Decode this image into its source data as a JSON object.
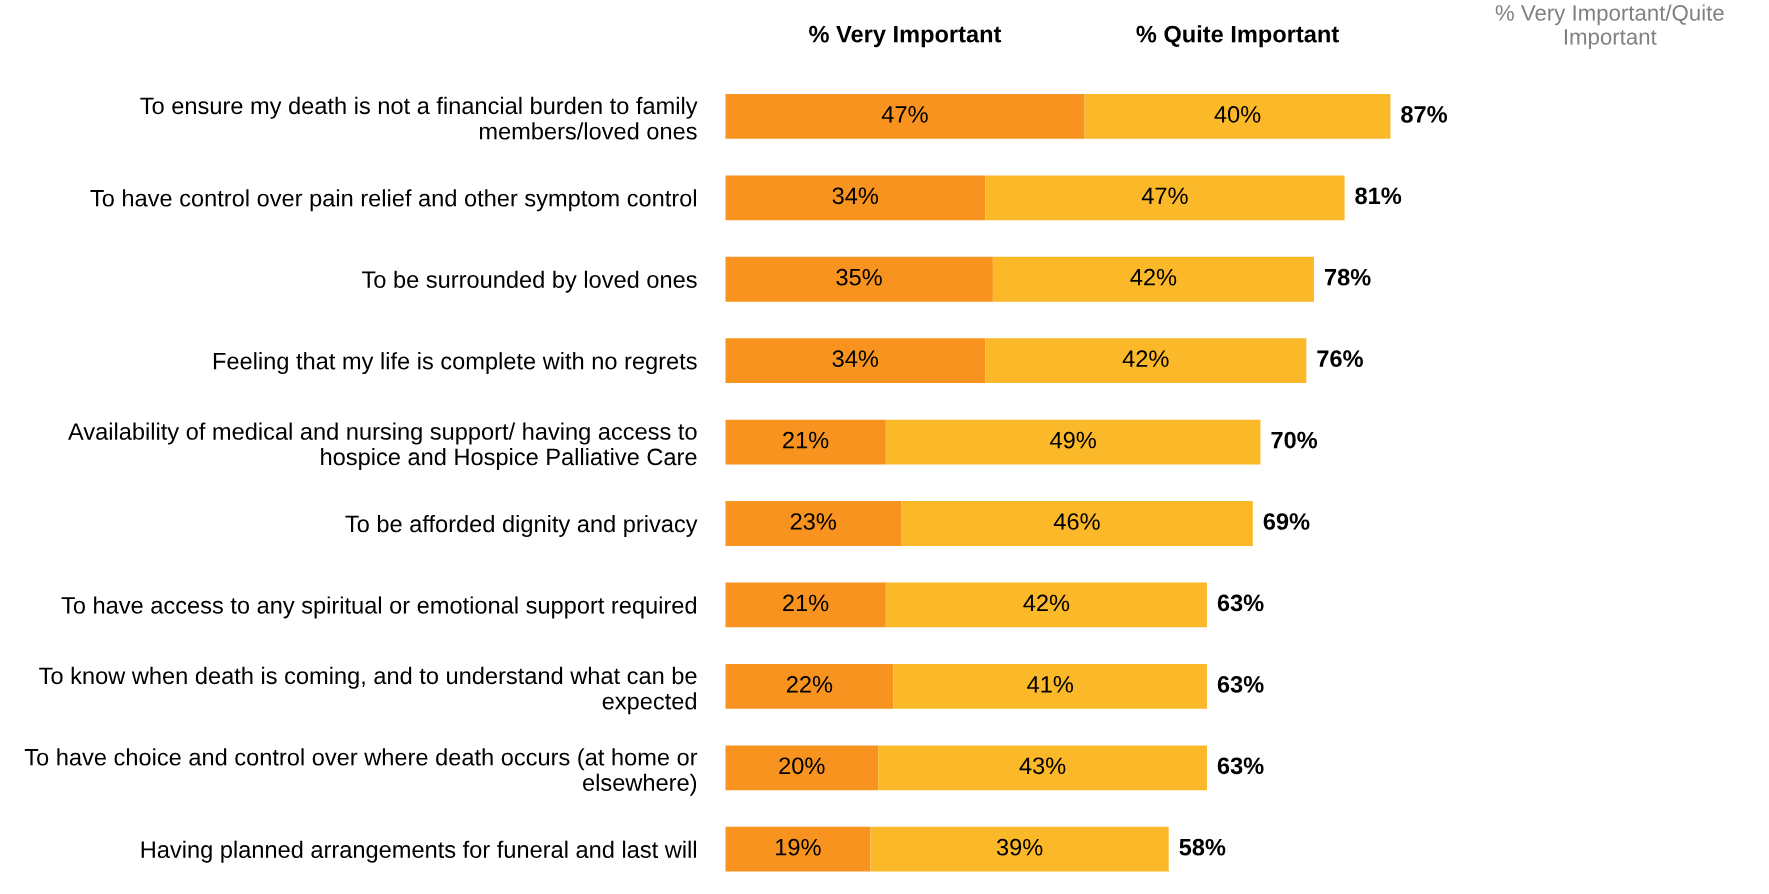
{
  "chart_data": {
    "type": "bar",
    "orientation": "horizontal",
    "stacked": true,
    "grid": false,
    "categories": [
      "To ensure my death is not a financial burden to family members/loved ones",
      "To have control over pain relief and other symptom control",
      "To be surrounded by loved ones",
      "Feeling that my life is complete with no regrets",
      "Availability of medical and nursing support/ having access to hospice and Hospice Palliative Care",
      "To be afforded dignity and privacy",
      "To have access to any spiritual or emotional support required",
      "To know when death is coming, and to understand what can be expected",
      "To have choice and control over where death occurs (at home or elsewhere)",
      "Having planned arrangements for funeral and last will"
    ],
    "series": [
      {
        "name": "% Very Important",
        "color": "#f7931e",
        "values": [
          47,
          34,
          35,
          34,
          21,
          23,
          21,
          22,
          20,
          19
        ],
        "value_labels": [
          "47%",
          "34%",
          "35%",
          "34%",
          "21%",
          "23%",
          "21%",
          "22%",
          "20%",
          "19%"
        ]
      },
      {
        "name": "% Quite Important",
        "color": "#fbb829",
        "values": [
          40,
          47,
          42,
          42,
          49,
          46,
          42,
          41,
          43,
          39
        ],
        "value_labels": [
          "40%",
          "47%",
          "42%",
          "42%",
          "49%",
          "46%",
          "42%",
          "41%",
          "43%",
          "39%"
        ]
      }
    ],
    "totals": [
      "87%",
      "81%",
      "78%",
      "76%",
      "70%",
      "69%",
      "63%",
      "63%",
      "63%",
      "58%"
    ],
    "annotations": [
      "% Very Important/Quite Important"
    ]
  }
}
